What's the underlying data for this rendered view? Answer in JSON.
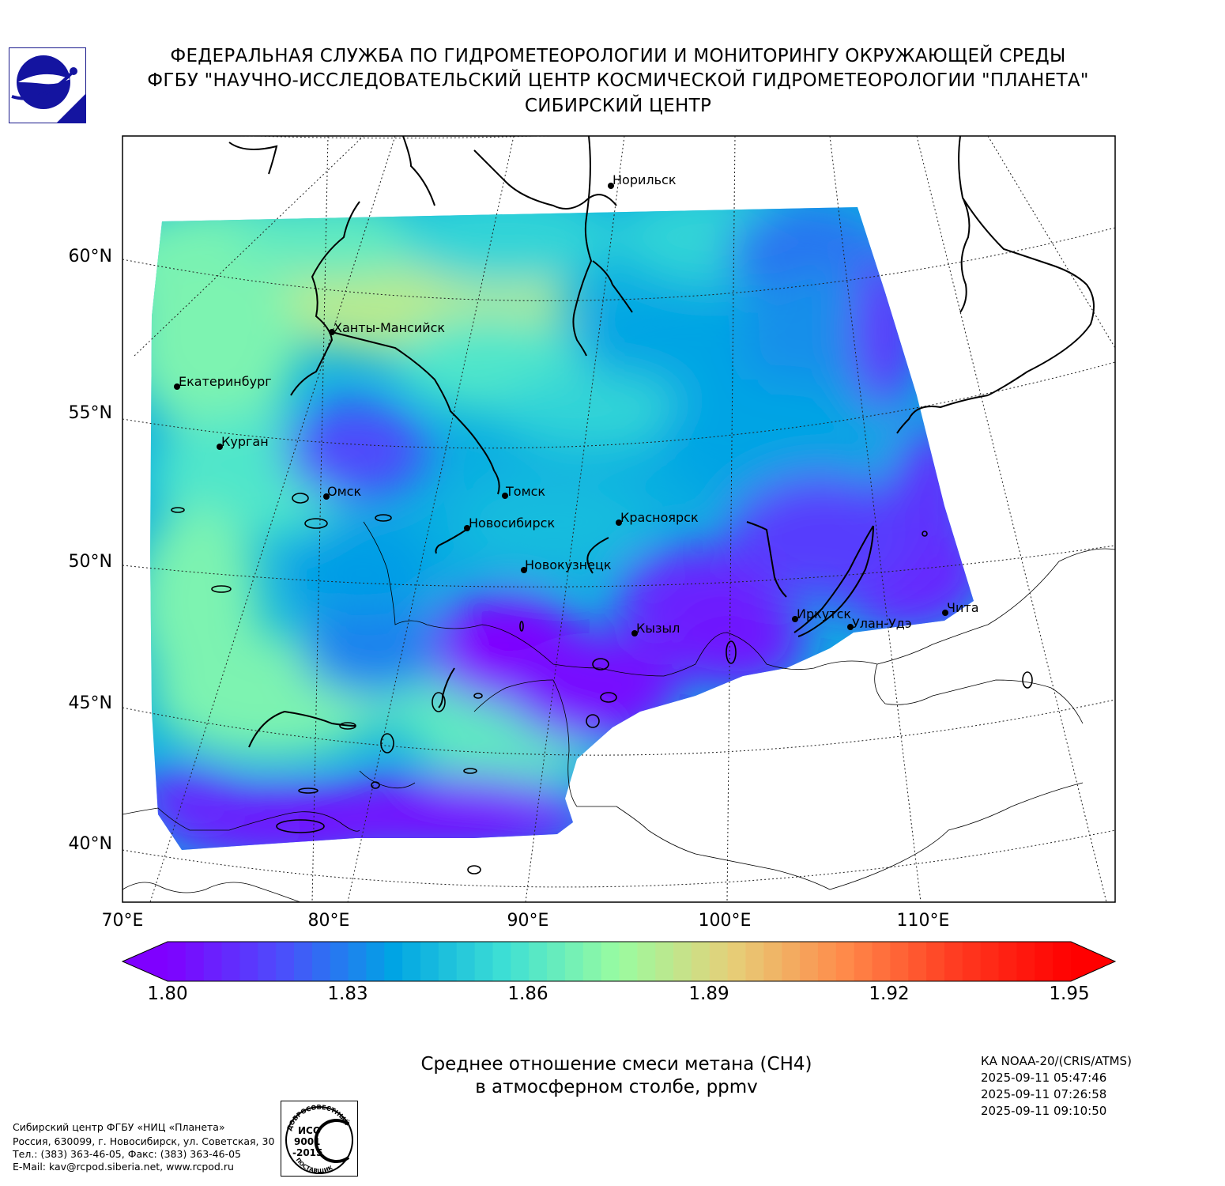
{
  "header": {
    "line1": "ФЕДЕРАЛЬНАЯ СЛУЖБА ПО ГИДРОМЕТЕОРОЛОГИИ И МОНИТОРИНГУ ОКРУЖАЮЩЕЙ СРЕДЫ",
    "line2": "ФГБУ \"НАУЧНО-ИССЛЕДОВАТЕЛЬСКИЙ ЦЕНТР КОСМИЧЕСКОЙ ГИДРОМЕТЕОРОЛОГИИ \"ПЛАНЕТА\"",
    "line3": "СИБИРСКИЙ ЦЕНТР"
  },
  "map": {
    "lat_labels": [
      "60°N",
      "55°N",
      "50°N",
      "45°N",
      "40°N"
    ],
    "lon_labels": [
      "70°E",
      "80°E",
      "90°E",
      "100°E",
      "110°E"
    ],
    "cities": [
      {
        "name": "Норильск"
      },
      {
        "name": "Ханты-Мансийск"
      },
      {
        "name": "Екатеринбург"
      },
      {
        "name": "Курган"
      },
      {
        "name": "Омск"
      },
      {
        "name": "Томск"
      },
      {
        "name": "Новосибирск"
      },
      {
        "name": "Красноярск"
      },
      {
        "name": "Новокузнецк"
      },
      {
        "name": "Иркутск"
      },
      {
        "name": "Улан-Удэ"
      },
      {
        "name": "Чита"
      },
      {
        "name": "Кызыл"
      }
    ]
  },
  "colorbar": {
    "min": 1.8,
    "max": 1.95,
    "ticks": [
      "1.80",
      "1.83",
      "1.86",
      "1.89",
      "1.92",
      "1.95"
    ],
    "colors": [
      "#7f00ff",
      "#4d4dfc",
      "#00a4e4",
      "#3ee0d4",
      "#9afca0",
      "#e6cf78",
      "#ff8a4a",
      "#ff3a20",
      "#ff0000"
    ]
  },
  "caption": {
    "line1": "Среднее отношение смеси метана (CH4)",
    "line2": "в атмосферном столбе, ppmv"
  },
  "satellite": {
    "name": "КА NOAA-20/(CRIS/ATMS)",
    "times": [
      "2025-09-11 05:47:46",
      "2025-09-11 07:26:58",
      "2025-09-11 09:10:50"
    ]
  },
  "contact": {
    "line1": "Сибирский центр ФГБУ «НИЦ «Планета»",
    "line2": "Россия, 630099, г. Новосибирск, ул. Советская, 30",
    "line3": "Тел.: (383) 363-46-05, Факс: (383) 363-46-05",
    "line4": "E-Mail: kav@rcpod.siberia.net, www.rcpod.ru"
  },
  "iso_badge": {
    "top_text": "ДОБРОСОВЕСТНЫЙ",
    "l1": "ИСО",
    "l2": "9001",
    "l3": "-2015",
    "bottom_text": "ПОСТАВЩИК"
  }
}
